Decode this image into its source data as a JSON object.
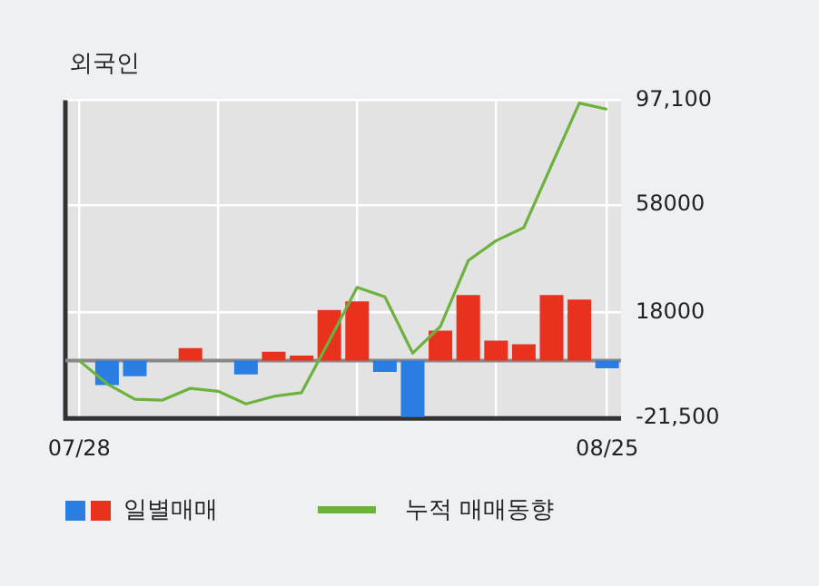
{
  "chart_data": {
    "type": "bar",
    "title": "외국인",
    "categories": [
      "07/28",
      null,
      null,
      null,
      null,
      null,
      null,
      null,
      null,
      null,
      null,
      null,
      null,
      null,
      null,
      null,
      null,
      null,
      null,
      "08/25"
    ],
    "series": [
      {
        "name": "일별매매",
        "values": [
          0,
          -9100,
          -5800,
          0,
          4700,
          0,
          -5100,
          3300,
          1900,
          18900,
          22100,
          -4200,
          -21000,
          11200,
          24500,
          7500,
          6100,
          24500,
          22800,
          -2800
        ],
        "colors": [
          "#2a7de1",
          "#2a7de1",
          "#2a7de1",
          "#e8321e",
          "#e8321e",
          "#e8321e",
          "#2a7de1",
          "#e8321e",
          "#e8321e",
          "#e8321e",
          "#e8321e",
          "#2a7de1",
          "#2a7de1",
          "#e8321e",
          "#e8321e",
          "#e8321e",
          "#e8321e",
          "#e8321e",
          "#e8321e",
          "#2a7de1"
        ]
      },
      {
        "name": "누적 매매동향",
        "type": "line",
        "color": "#6cb33e",
        "values": [
          0,
          -8600,
          -14400,
          -14700,
          -10300,
          -11400,
          -16100,
          -13300,
          -11900,
          7500,
          27300,
          23800,
          2800,
          12800,
          37300,
          44700,
          49600,
          72900,
          96000,
          93700
        ]
      }
    ],
    "ylim": [
      -21500,
      97100
    ],
    "yticks": [
      {
        "value": 97100,
        "label": "97,100"
      },
      58000,
      18000,
      {
        "value": -21500,
        "label": "-21,500"
      }
    ],
    "grid": true,
    "legend": "bottom",
    "marker": "none",
    "line_style": "solid"
  }
}
